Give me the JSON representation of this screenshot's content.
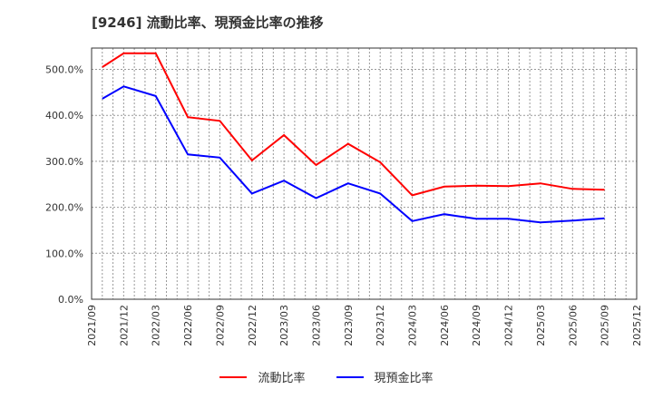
{
  "title": "[9246]  流動比率、現預金比率の推移",
  "legend": [
    {
      "label": "流動比率",
      "color": "#ff0000"
    },
    {
      "label": "現預金比率",
      "color": "#0000ff"
    }
  ],
  "chart_data": {
    "type": "line",
    "title": "[9246]  流動比率、現預金比率の推移",
    "xlabel": "",
    "ylabel": "",
    "ylim": [
      0,
      545
    ],
    "yticks": [
      "0.0%",
      "100.0%",
      "200.0%",
      "300.0%",
      "400.0%",
      "500.0%"
    ],
    "xticks": [
      "2021/09",
      "2021/12",
      "2022/03",
      "2022/06",
      "2022/09",
      "2022/12",
      "2023/03",
      "2023/06",
      "2023/09",
      "2023/12",
      "2024/03",
      "2024/06",
      "2024/09",
      "2024/12",
      "2025/03",
      "2025/06",
      "2025/09",
      "2025/12"
    ],
    "grid": true,
    "legend_position": "bottom",
    "x": [
      "2021/10",
      "2021/12",
      "2022/03",
      "2022/06",
      "2022/09",
      "2022/12",
      "2023/03",
      "2023/06",
      "2023/09",
      "2023/12",
      "2024/03",
      "2024/06",
      "2024/09",
      "2024/12",
      "2025/03",
      "2025/06",
      "2025/09"
    ],
    "series": [
      {
        "name": "流動比率",
        "color": "#ff0000",
        "values": [
          505,
          535,
          535,
          396,
          388,
          302,
          357,
          292,
          338,
          298,
          226,
          245,
          247,
          246,
          252,
          240,
          238
        ]
      },
      {
        "name": "現預金比率",
        "color": "#0000ff",
        "values": [
          436,
          463,
          442,
          315,
          308,
          230,
          258,
          220,
          252,
          230,
          170,
          185,
          175,
          175,
          167,
          171,
          176
        ]
      }
    ]
  }
}
